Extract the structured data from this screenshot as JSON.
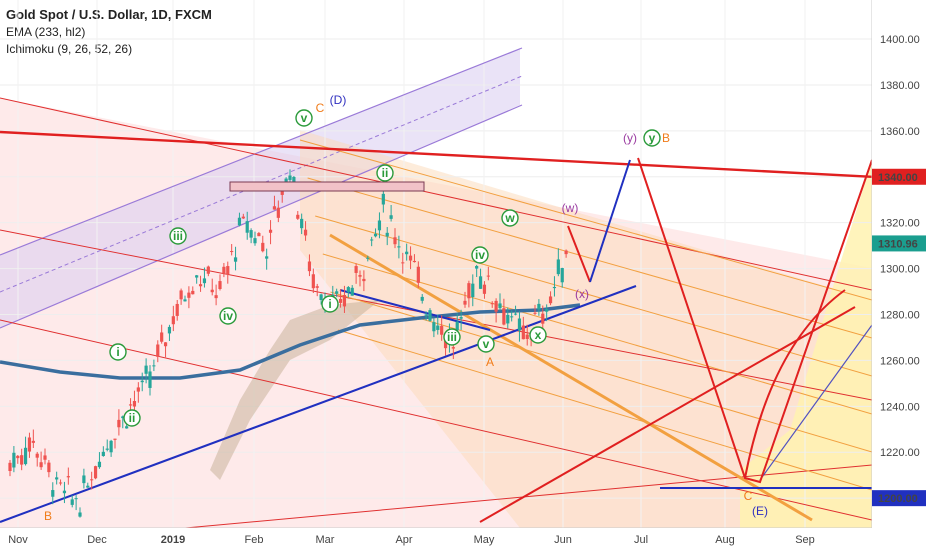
{
  "header": {
    "title": "Gold Spot / U.S. Dollar, 1D, FXCM",
    "indicators": [
      "EMA (233, hl2)",
      "Ichimoku (9, 26, 52, 26)"
    ]
  },
  "chart_data": {
    "type": "candlestick",
    "symbol": "Gold Spot / U.S. Dollar",
    "timeframe": "1D",
    "x_ticks": [
      "Nov",
      "Dec",
      "2019",
      "Feb",
      "Mar",
      "Apr",
      "May",
      "Jun",
      "Jul",
      "Aug",
      "Sep"
    ],
    "y_ticks": [
      1200,
      1220,
      1240,
      1260,
      1280,
      1300,
      1320,
      1340,
      1360,
      1380,
      1400
    ],
    "ylim": [
      1187,
      1417
    ],
    "price_tags": [
      {
        "value": 1340.0,
        "label": "1340.00",
        "color": "#e02020"
      },
      {
        "value": 1310.96,
        "label": "1310.96",
        "color": "#1a9e8f"
      },
      {
        "value": 1200.0,
        "label": "1200.00",
        "color": "#2030c0"
      }
    ],
    "price_path": [
      [
        "Nov",
        1215
      ],
      [
        "Nov",
        1225
      ],
      [
        "Nov",
        1205
      ],
      [
        "Nov",
        1198
      ],
      [
        "Dec",
        1222
      ],
      [
        "Dec",
        1238
      ],
      [
        "Dec",
        1252
      ],
      [
        "2019",
        1280
      ],
      [
        "2019",
        1298
      ],
      [
        "2019",
        1290
      ],
      [
        "Feb",
        1320
      ],
      [
        "Feb",
        1310
      ],
      [
        "Feb",
        1345
      ],
      [
        "Mar",
        1295
      ],
      [
        "Mar",
        1282
      ],
      [
        "Mar",
        1298
      ],
      [
        "Mar",
        1325
      ],
      [
        "Apr",
        1306
      ],
      [
        "Apr",
        1282
      ],
      [
        "May",
        1266
      ],
      [
        "May",
        1300
      ],
      [
        "May",
        1285
      ],
      [
        "May",
        1270
      ],
      [
        "Jun",
        1283
      ],
      [
        "Jun",
        1311
      ]
    ],
    "wave_labels": [
      {
        "text": "i",
        "style": "circle",
        "color": "#2a9a3a"
      },
      {
        "text": "ii",
        "style": "circle",
        "color": "#2a9a3a"
      },
      {
        "text": "iii",
        "style": "circle",
        "color": "#2a9a3a"
      },
      {
        "text": "iv",
        "style": "circle",
        "color": "#2a9a3a"
      },
      {
        "text": "v",
        "style": "circle",
        "color": "#2a9a3a"
      },
      {
        "text": "C",
        "style": "plain",
        "color": "#f07c1a"
      },
      {
        "text": "(D)",
        "style": "plain",
        "color": "#3030c0"
      },
      {
        "text": "i",
        "style": "circle",
        "color": "#2a9a3a"
      },
      {
        "text": "ii",
        "style": "circle",
        "color": "#2a9a3a"
      },
      {
        "text": "iii",
        "style": "circle",
        "color": "#2a9a3a"
      },
      {
        "text": "iv",
        "style": "circle",
        "color": "#2a9a3a"
      },
      {
        "text": "v",
        "style": "circle",
        "color": "#2a9a3a"
      },
      {
        "text": "A",
        "style": "plain",
        "color": "#f07c1a"
      },
      {
        "text": "w",
        "style": "circle",
        "color": "#2a9a3a"
      },
      {
        "text": "x",
        "style": "circle",
        "color": "#2a9a3a"
      },
      {
        "text": "(w)",
        "style": "plain",
        "color": "#9a3aa0"
      },
      {
        "text": "(x)",
        "style": "plain",
        "color": "#9a3aa0"
      },
      {
        "text": "(y)",
        "style": "plain",
        "color": "#9a3aa0"
      },
      {
        "text": "y",
        "style": "circle",
        "color": "#2a9a3a"
      },
      {
        "text": "B",
        "style": "plain",
        "color": "#f07c1a"
      },
      {
        "text": "C",
        "style": "plain",
        "color": "#f07c1a"
      },
      {
        "text": "(E)",
        "style": "plain",
        "color": "#3030c0"
      },
      {
        "text": "B",
        "style": "plain",
        "color": "#f07c1a"
      }
    ],
    "grid": true,
    "legend": "none"
  }
}
